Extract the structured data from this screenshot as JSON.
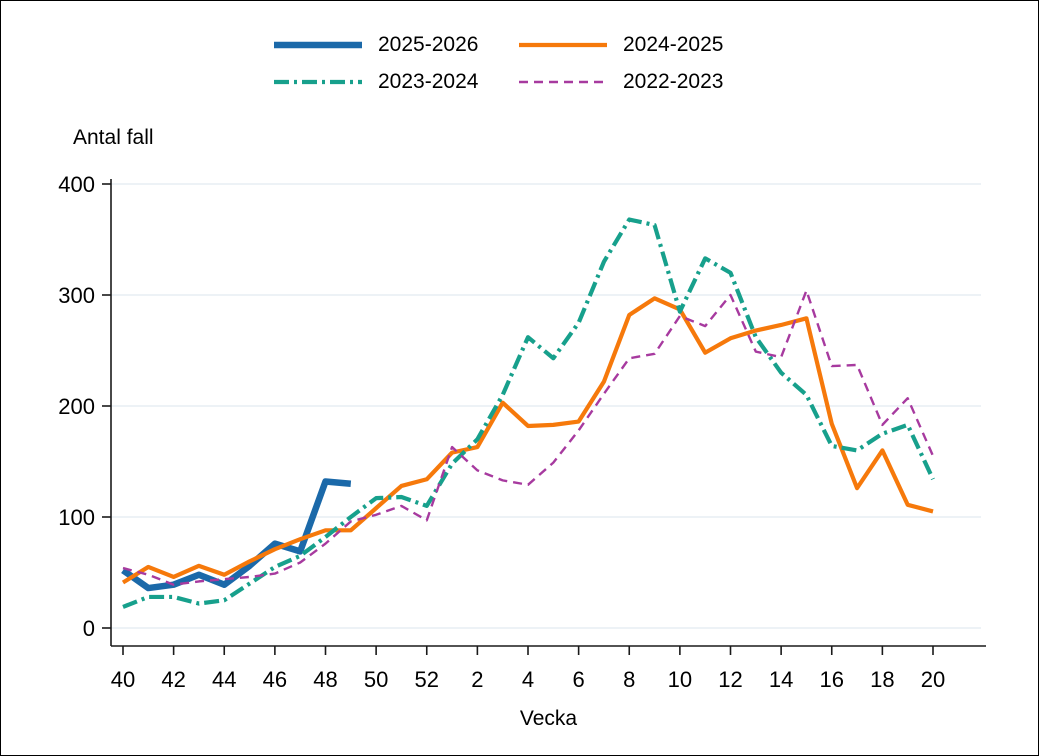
{
  "chart_data": {
    "type": "line",
    "title": "Antal fall",
    "xlabel": "Vecka",
    "grid": "horizontal",
    "legend_position": "top",
    "ylim": [
      0,
      400
    ],
    "yticks": [
      0,
      100,
      200,
      300,
      400
    ],
    "x_categories": [
      "40",
      "41",
      "42",
      "43",
      "44",
      "45",
      "46",
      "47",
      "48",
      "49",
      "50",
      "51",
      "52",
      "1",
      "2",
      "3",
      "4",
      "5",
      "6",
      "7",
      "8",
      "9",
      "10",
      "11",
      "12",
      "13",
      "14",
      "15",
      "16",
      "17",
      "18",
      "19",
      "20"
    ],
    "x_tick_labels": [
      "40",
      "42",
      "44",
      "46",
      "48",
      "50",
      "52",
      "2",
      "4",
      "6",
      "8",
      "10",
      "12",
      "14",
      "16",
      "18",
      "20"
    ],
    "colors": {
      "axis": "#1a1a1a",
      "gridline": "#e7eef3",
      "text": "#000000"
    },
    "series": [
      {
        "name": "2025-2026",
        "color": "#1b69a9",
        "style": "solid",
        "width": 6.5,
        "values": [
          52,
          36,
          39,
          48,
          39,
          56,
          76,
          69,
          132,
          130
        ]
      },
      {
        "name": "2024-2025",
        "color": "#f6790b",
        "style": "solid",
        "width": 4.2,
        "values": [
          41,
          55,
          46,
          56,
          48,
          60,
          71,
          80,
          88,
          88,
          108,
          128,
          134,
          158,
          163,
          203,
          182,
          183,
          186,
          222,
          282,
          297,
          287,
          248,
          261,
          268,
          273,
          279,
          184,
          126,
          160,
          111,
          105
        ]
      },
      {
        "name": "2023-2024",
        "color": "#17a08c",
        "style": "dash-dot",
        "width": 4.2,
        "values": [
          19,
          28,
          28,
          22,
          25,
          40,
          55,
          65,
          82,
          100,
          117,
          118,
          110,
          148,
          170,
          210,
          262,
          243,
          275,
          330,
          368,
          363,
          285,
          333,
          320,
          262,
          230,
          210,
          164,
          160,
          175,
          183,
          134
        ]
      },
      {
        "name": "2022-2023",
        "color": "#a73a9f",
        "style": "dashed",
        "width": 2.4,
        "values": [
          54,
          48,
          39,
          42,
          44,
          46,
          49,
          59,
          76,
          96,
          102,
          110,
          97,
          163,
          142,
          133,
          129,
          149,
          178,
          211,
          243,
          247,
          281,
          272,
          300,
          249,
          244,
          304,
          236,
          237,
          183,
          207,
          155
        ]
      }
    ]
  }
}
